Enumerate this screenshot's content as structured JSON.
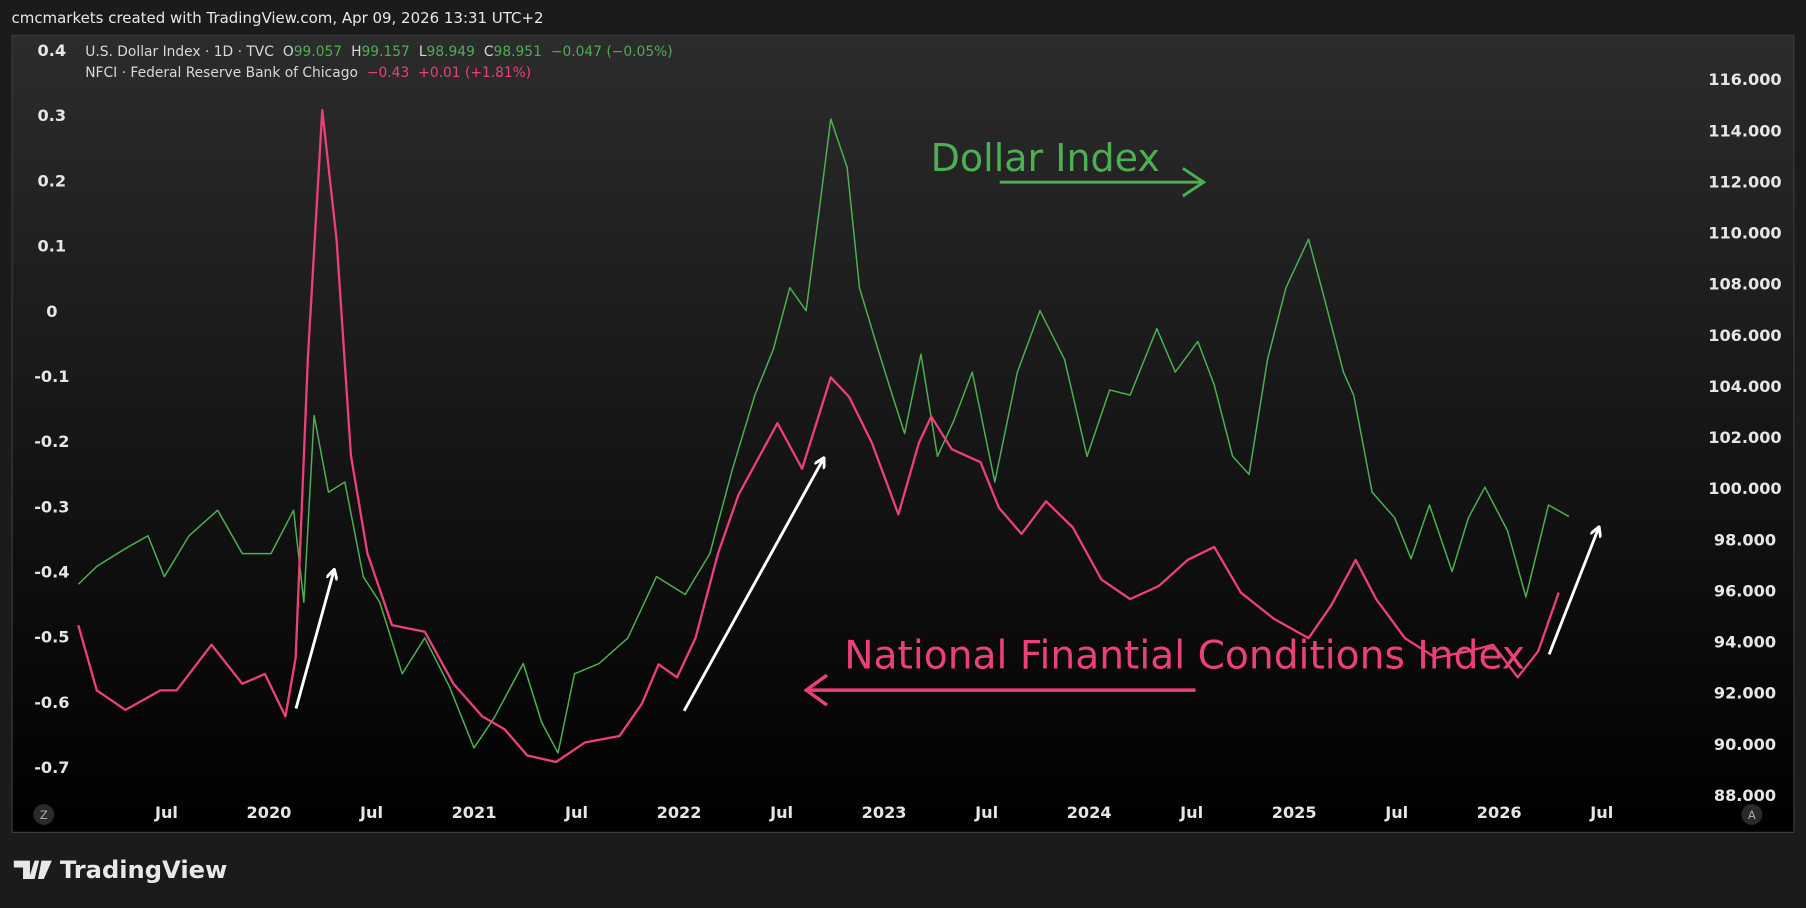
{
  "header": {
    "credit": "cmcmarkets created with TradingView.com, Apr 09, 2026 13:31 UTC+2"
  },
  "footer": {
    "brand": "TradingView"
  },
  "buttons": {
    "left": "Z",
    "right": "A"
  },
  "chart_data": {
    "type": "line",
    "legend_values": [
      {
        "labels": [
          "O",
          "H",
          "L",
          "C"
        ],
        "values": [
          99.057,
          99.157,
          98.949,
          98.951
        ],
        "change": "−0.047 (−0.05%)"
      },
      {
        "last": "−0.43",
        "change": "+0.01 (+1.81%)"
      }
    ],
    "annotations": [
      {
        "text": "Dollar Index",
        "color": "#4caf50"
      },
      {
        "text": "National Finantial Conditions Index",
        "color": "#ec407a"
      }
    ],
    "series": [
      {
        "name": "U.S. Dollar Index · 1D · TVC",
        "color": "#4caf50",
        "axis": "y2",
        "x": [
          2019.07,
          2019.16,
          2019.3,
          2019.41,
          2019.49,
          2019.61,
          2019.75,
          2019.87,
          2020.01,
          2020.12,
          2020.17,
          2020.22,
          2020.29,
          2020.37,
          2020.46,
          2020.54,
          2020.65,
          2020.76,
          2020.88,
          2021.0,
          2021.1,
          2021.24,
          2021.33,
          2021.41,
          2021.49,
          2021.61,
          2021.75,
          2021.89,
          2022.03,
          2022.15,
          2022.26,
          2022.37,
          2022.46,
          2022.54,
          2022.62,
          2022.68,
          2022.74,
          2022.82,
          2022.88,
          2022.97,
          2023.04,
          2023.1,
          2023.18,
          2023.26,
          2023.34,
          2023.43,
          2023.54,
          2023.65,
          2023.76,
          2023.88,
          2023.99,
          2024.1,
          2024.2,
          2024.33,
          2024.42,
          2024.53,
          2024.61,
          2024.7,
          2024.78,
          2024.87,
          2024.96,
          2025.07,
          2025.15,
          2025.24,
          2025.29,
          2025.38,
          2025.49,
          2025.57,
          2025.66,
          2025.77,
          2025.85,
          2025.93,
          2026.04,
          2026.13,
          2026.24,
          2026.34
        ],
        "values": [
          96.3,
          97.0,
          97.7,
          98.2,
          96.6,
          98.2,
          99.2,
          97.5,
          97.5,
          99.2,
          95.6,
          102.9,
          99.9,
          100.3,
          96.6,
          95.6,
          92.8,
          94.2,
          92.3,
          89.9,
          91.1,
          93.2,
          90.9,
          89.7,
          92.8,
          93.2,
          94.2,
          96.6,
          95.9,
          97.5,
          100.8,
          103.7,
          105.5,
          107.9,
          107.0,
          110.7,
          114.5,
          112.6,
          107.9,
          105.5,
          103.7,
          102.2,
          105.3,
          101.3,
          102.7,
          104.6,
          100.3,
          104.6,
          107.0,
          105.1,
          101.3,
          103.9,
          103.7,
          106.3,
          104.6,
          105.8,
          104.1,
          101.3,
          100.6,
          105.1,
          107.9,
          109.8,
          107.4,
          104.6,
          103.7,
          99.9,
          98.9,
          97.3,
          99.4,
          96.8,
          98.9,
          100.1,
          98.4,
          95.8,
          99.4,
          98.951
        ]
      },
      {
        "name": "NFCI · Federal Reserve Bank of Chicago",
        "color": "#ec407a",
        "x": [
          2019.07,
          2019.16,
          2019.3,
          2019.47,
          2019.55,
          2019.72,
          2019.87,
          2019.98,
          2020.08,
          2020.13,
          2020.19,
          2020.26,
          2020.33,
          2020.4,
          2020.48,
          2020.6,
          2020.76,
          2020.9,
          2021.04,
          2021.15,
          2021.26,
          2021.4,
          2021.54,
          2021.71,
          2021.82,
          2021.9,
          2021.99,
          2022.08,
          2022.19,
          2022.29,
          2022.48,
          2022.6,
          2022.74,
          2022.83,
          2022.94,
          2023.07,
          2023.17,
          2023.23,
          2023.33,
          2023.47,
          2023.56,
          2023.67,
          2023.79,
          2023.92,
          2024.06,
          2024.2,
          2024.34,
          2024.48,
          2024.61,
          2024.74,
          2024.9,
          2025.07,
          2025.18,
          2025.3,
          2025.4,
          2025.54,
          2025.69,
          2025.85,
          2025.97,
          2026.09,
          2026.19,
          2026.29
        ],
        "values": [
          -0.48,
          -0.58,
          -0.61,
          -0.58,
          -0.58,
          -0.51,
          -0.57,
          -0.555,
          -0.62,
          -0.53,
          -0.07,
          0.31,
          0.11,
          -0.22,
          -0.37,
          -0.48,
          -0.49,
          -0.57,
          -0.62,
          -0.64,
          -0.68,
          -0.69,
          -0.66,
          -0.65,
          -0.6,
          -0.54,
          -0.56,
          -0.5,
          -0.37,
          -0.28,
          -0.17,
          -0.24,
          -0.1,
          -0.13,
          -0.2,
          -0.31,
          -0.2,
          -0.16,
          -0.21,
          -0.23,
          -0.3,
          -0.34,
          -0.29,
          -0.33,
          -0.41,
          -0.44,
          -0.42,
          -0.38,
          -0.36,
          -0.43,
          -0.47,
          -0.5,
          -0.45,
          -0.38,
          -0.44,
          -0.5,
          -0.53,
          -0.52,
          -0.51,
          -0.56,
          -0.52,
          -0.43
        ]
      }
    ],
    "xlim": [
      2018.75,
      2027.44
    ],
    "xticks": [
      {
        "value": 2019.5,
        "label": "Jul"
      },
      2020,
      {
        "value": 2020.5,
        "label": "Jul"
      },
      2021,
      {
        "value": 2021.5,
        "label": "Jul"
      },
      2022,
      {
        "value": 2022.5,
        "label": "Jul"
      },
      2023,
      {
        "value": 2023.5,
        "label": "Jul"
      },
      2024,
      {
        "value": 2024.5,
        "label": "Jul"
      },
      2025,
      {
        "value": 2025.5,
        "label": "Jul"
      },
      2026,
      {
        "value": 2026.5,
        "label": "Jul"
      }
    ],
    "ylim": [
      -0.797,
      0.424
    ],
    "yticks": [
      0.4,
      0.3,
      0.2,
      0.1,
      0,
      -0.1,
      -0.2,
      -0.3,
      -0.4,
      -0.5,
      -0.6,
      -0.7
    ],
    "y2lim": [
      86.62,
      117.75
    ],
    "y2ticks": [
      {
        "value": 116,
        "label": "116.000"
      },
      {
        "value": 114,
        "label": "114.000"
      },
      {
        "value": 112,
        "label": "112.000"
      },
      {
        "value": 110,
        "label": "110.000"
      },
      {
        "value": 108,
        "label": "108.000"
      },
      {
        "value": 106,
        "label": "106.000"
      },
      {
        "value": 104,
        "label": "104.000"
      },
      {
        "value": 102,
        "label": "102.000"
      },
      {
        "value": 100,
        "label": "100.000"
      },
      {
        "value": 98,
        "label": "98.000"
      },
      {
        "value": 96,
        "label": "96.000"
      },
      {
        "value": 94,
        "label": "94.000"
      },
      {
        "value": 92,
        "label": "92.000"
      },
      {
        "value": 90,
        "label": "90.000"
      },
      {
        "value": 88,
        "label": "88.000"
      }
    ]
  }
}
